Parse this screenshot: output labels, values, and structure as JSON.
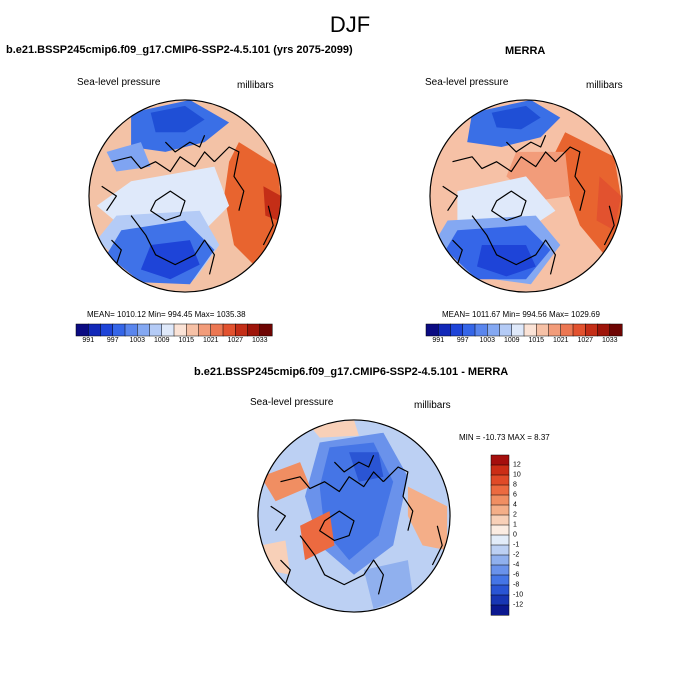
{
  "season": "DJF",
  "left_panel": {
    "title": "b.e21.BSSP245cmip6.f09_g17.CMIP6-SSP2-4.5.101 (yrs 2075-2099)",
    "variable": "Sea-level pressure",
    "units": "millibars",
    "stats": "MEAN= 1010.12  Min= 994.45  Max= 1035.38"
  },
  "right_panel": {
    "title": "MERRA",
    "variable": "Sea-level pressure",
    "units": "millibars",
    "stats": "MEAN= 1011.67  Min= 994.56  Max= 1029.69"
  },
  "diff_panel": {
    "title": "b.e21.BSSP245cmip6.f09_g17.CMIP6-SSP2-4.5.101 - MERRA",
    "variable": "Sea-level pressure",
    "units": "millibars",
    "stats": "MIN = -10.73 MAX =   8.37"
  },
  "slp_colorbar": {
    "labels": [
      "991",
      "997",
      "1003",
      "1009",
      "1015",
      "1021",
      "1027",
      "1033"
    ],
    "colors": [
      "#0b0b82",
      "#1228b8",
      "#1e44d8",
      "#3566e8",
      "#5a86ee",
      "#84a8f2",
      "#b4cbf6",
      "#dfe9fa",
      "#fbe3d6",
      "#f6c1a6",
      "#f29c7a",
      "#ec7752",
      "#e2522f",
      "#c42e17",
      "#9e1409",
      "#6e0503"
    ]
  },
  "diff_colorbar": {
    "labels": [
      "12",
      "10",
      "8",
      "6",
      "4",
      "2",
      "1",
      "0",
      "-1",
      "-2",
      "-4",
      "-6",
      "-8",
      "-10",
      "-12"
    ],
    "colors": [
      "#a50f0d",
      "#cb2d16",
      "#e04a28",
      "#ec6a40",
      "#f08e62",
      "#f4ae88",
      "#f8d0b8",
      "#fbece2",
      "#e2ecf9",
      "#bcd0f3",
      "#90b0ee",
      "#6a92eb",
      "#4575e6",
      "#2a55d4",
      "#1836b4",
      "#0b1890"
    ]
  },
  "maps": {
    "left": {
      "background": "#f3c2a6",
      "blobs": [
        {
          "color": "#3a6fe6",
          "pts": [
            [
              -0.55,
              -0.85
            ],
            [
              0.05,
              -0.98
            ],
            [
              0.45,
              -0.75
            ],
            [
              0.2,
              -0.55
            ],
            [
              -0.2,
              -0.45
            ],
            [
              -0.55,
              -0.5
            ]
          ]
        },
        {
          "color": "#1f4fd6",
          "pts": [
            [
              -0.35,
              -0.85
            ],
            [
              0.0,
              -0.92
            ],
            [
              0.2,
              -0.78
            ],
            [
              0.0,
              -0.65
            ],
            [
              -0.3,
              -0.65
            ]
          ]
        },
        {
          "color": "#7fa4f2",
          "pts": [
            [
              -0.8,
              -0.45
            ],
            [
              -0.45,
              -0.55
            ],
            [
              -0.35,
              -0.3
            ],
            [
              -0.7,
              -0.25
            ]
          ]
        },
        {
          "color": "#e8642f",
          "pts": [
            [
              0.55,
              -0.55
            ],
            [
              0.95,
              -0.3
            ],
            [
              1.0,
              0.35
            ],
            [
              0.75,
              0.75
            ],
            [
              0.5,
              0.5
            ],
            [
              0.4,
              0.0
            ],
            [
              0.45,
              -0.35
            ]
          ]
        },
        {
          "color": "#c42e17",
          "pts": [
            [
              0.8,
              -0.1
            ],
            [
              0.98,
              0.0
            ],
            [
              0.95,
              0.25
            ],
            [
              0.82,
              0.2
            ]
          ]
        },
        {
          "color": "#dfe9fa",
          "pts": [
            [
              -0.55,
              -0.15
            ],
            [
              0.3,
              -0.3
            ],
            [
              0.45,
              0.1
            ],
            [
              0.2,
              0.35
            ],
            [
              -0.6,
              0.35
            ],
            [
              -0.9,
              0.1
            ]
          ]
        },
        {
          "color": "#b4cbf6",
          "pts": [
            [
              -0.7,
              0.2
            ],
            [
              0.15,
              0.15
            ],
            [
              0.35,
              0.5
            ],
            [
              0.1,
              0.85
            ],
            [
              -0.5,
              0.8
            ],
            [
              -0.9,
              0.45
            ]
          ]
        },
        {
          "color": "#3f72e8",
          "pts": [
            [
              -0.65,
              0.35
            ],
            [
              0.0,
              0.25
            ],
            [
              0.3,
              0.55
            ],
            [
              0.05,
              0.9
            ],
            [
              -0.45,
              0.88
            ],
            [
              -0.8,
              0.6
            ]
          ]
        },
        {
          "color": "#1e44d8",
          "pts": [
            [
              -0.35,
              0.5
            ],
            [
              0.05,
              0.45
            ],
            [
              0.15,
              0.7
            ],
            [
              -0.15,
              0.85
            ],
            [
              -0.45,
              0.75
            ]
          ]
        }
      ]
    },
    "right": {
      "background": "#f6c1a6",
      "blobs": [
        {
          "color": "#3a6fe6",
          "pts": [
            [
              -0.55,
              -0.85
            ],
            [
              0.05,
              -0.98
            ],
            [
              0.35,
              -0.8
            ],
            [
              0.15,
              -0.6
            ],
            [
              -0.25,
              -0.5
            ],
            [
              -0.6,
              -0.55
            ]
          ]
        },
        {
          "color": "#1f4fd6",
          "pts": [
            [
              -0.35,
              -0.85
            ],
            [
              0.0,
              -0.92
            ],
            [
              0.15,
              -0.8
            ],
            [
              -0.05,
              -0.68
            ],
            [
              -0.3,
              -0.7
            ]
          ]
        },
        {
          "color": "#e8642f",
          "pts": [
            [
              0.4,
              -0.65
            ],
            [
              0.9,
              -0.4
            ],
            [
              1.0,
              0.2
            ],
            [
              0.8,
              0.6
            ],
            [
              0.55,
              0.3
            ],
            [
              0.4,
              -0.1
            ],
            [
              0.3,
              -0.45
            ]
          ]
        },
        {
          "color": "#f29c7a",
          "pts": [
            [
              -0.1,
              -0.45
            ],
            [
              0.4,
              -0.45
            ],
            [
              0.45,
              0.0
            ],
            [
              0.1,
              0.05
            ],
            [
              -0.2,
              -0.2
            ]
          ]
        },
        {
          "color": "#dfe9fa",
          "pts": [
            [
              -0.7,
              -0.05
            ],
            [
              0.0,
              -0.2
            ],
            [
              0.3,
              0.15
            ],
            [
              0.0,
              0.35
            ],
            [
              -0.7,
              0.3
            ]
          ]
        },
        {
          "color": "#84a8f2",
          "pts": [
            [
              -0.8,
              0.25
            ],
            [
              0.1,
              0.2
            ],
            [
              0.35,
              0.5
            ],
            [
              0.05,
              0.9
            ],
            [
              -0.55,
              0.82
            ],
            [
              -0.92,
              0.45
            ]
          ]
        },
        {
          "color": "#3566e8",
          "pts": [
            [
              -0.7,
              0.35
            ],
            [
              0.0,
              0.3
            ],
            [
              0.25,
              0.55
            ],
            [
              0.0,
              0.85
            ],
            [
              -0.5,
              0.85
            ],
            [
              -0.82,
              0.55
            ]
          ]
        },
        {
          "color": "#1e44d8",
          "pts": [
            [
              -0.45,
              0.5
            ],
            [
              0.0,
              0.5
            ],
            [
              0.1,
              0.72
            ],
            [
              -0.2,
              0.82
            ],
            [
              -0.5,
              0.72
            ]
          ]
        },
        {
          "color": "#e2522f",
          "pts": [
            [
              0.75,
              -0.2
            ],
            [
              0.97,
              0.0
            ],
            [
              0.9,
              0.35
            ],
            [
              0.72,
              0.25
            ]
          ]
        }
      ]
    },
    "diff": {
      "background": "#bcd0f3",
      "blobs": [
        {
          "color": "#6a92eb",
          "pts": [
            [
              -0.35,
              -0.75
            ],
            [
              0.3,
              -0.85
            ],
            [
              0.55,
              -0.4
            ],
            [
              0.4,
              0.3
            ],
            [
              0.0,
              0.6
            ],
            [
              -0.35,
              0.3
            ],
            [
              -0.5,
              -0.2
            ]
          ]
        },
        {
          "color": "#4575e6",
          "pts": [
            [
              -0.25,
              -0.7
            ],
            [
              0.2,
              -0.75
            ],
            [
              0.4,
              -0.35
            ],
            [
              0.25,
              0.2
            ],
            [
              -0.05,
              0.45
            ],
            [
              -0.3,
              0.15
            ],
            [
              -0.35,
              -0.3
            ]
          ]
        },
        {
          "color": "#2a55d4",
          "pts": [
            [
              -0.05,
              -0.65
            ],
            [
              0.25,
              -0.65
            ],
            [
              0.3,
              -0.4
            ],
            [
              0.05,
              -0.35
            ]
          ]
        },
        {
          "color": "#f08e62",
          "pts": [
            [
              -0.95,
              -0.4
            ],
            [
              -0.55,
              -0.55
            ],
            [
              -0.45,
              -0.3
            ],
            [
              -0.8,
              -0.15
            ]
          ]
        },
        {
          "color": "#ec6a40",
          "pts": [
            [
              -0.55,
              0.1
            ],
            [
              -0.25,
              -0.05
            ],
            [
              -0.2,
              0.3
            ],
            [
              -0.5,
              0.45
            ]
          ]
        },
        {
          "color": "#f4ae88",
          "pts": [
            [
              0.55,
              -0.3
            ],
            [
              0.95,
              -0.1
            ],
            [
              0.95,
              0.35
            ],
            [
              0.7,
              0.3
            ],
            [
              0.55,
              0.0
            ]
          ]
        },
        {
          "color": "#f8d0b8",
          "pts": [
            [
              -0.95,
              0.3
            ],
            [
              -0.7,
              0.25
            ],
            [
              -0.65,
              0.6
            ],
            [
              -0.9,
              0.55
            ]
          ]
        },
        {
          "color": "#f8d0b8",
          "pts": [
            [
              -0.45,
              -0.92
            ],
            [
              0.0,
              -0.98
            ],
            [
              0.05,
              -0.82
            ],
            [
              -0.35,
              -0.8
            ]
          ]
        },
        {
          "color": "#90b0ee",
          "pts": [
            [
              0.1,
              0.55
            ],
            [
              0.55,
              0.45
            ],
            [
              0.6,
              0.8
            ],
            [
              0.2,
              0.95
            ]
          ]
        }
      ]
    }
  }
}
